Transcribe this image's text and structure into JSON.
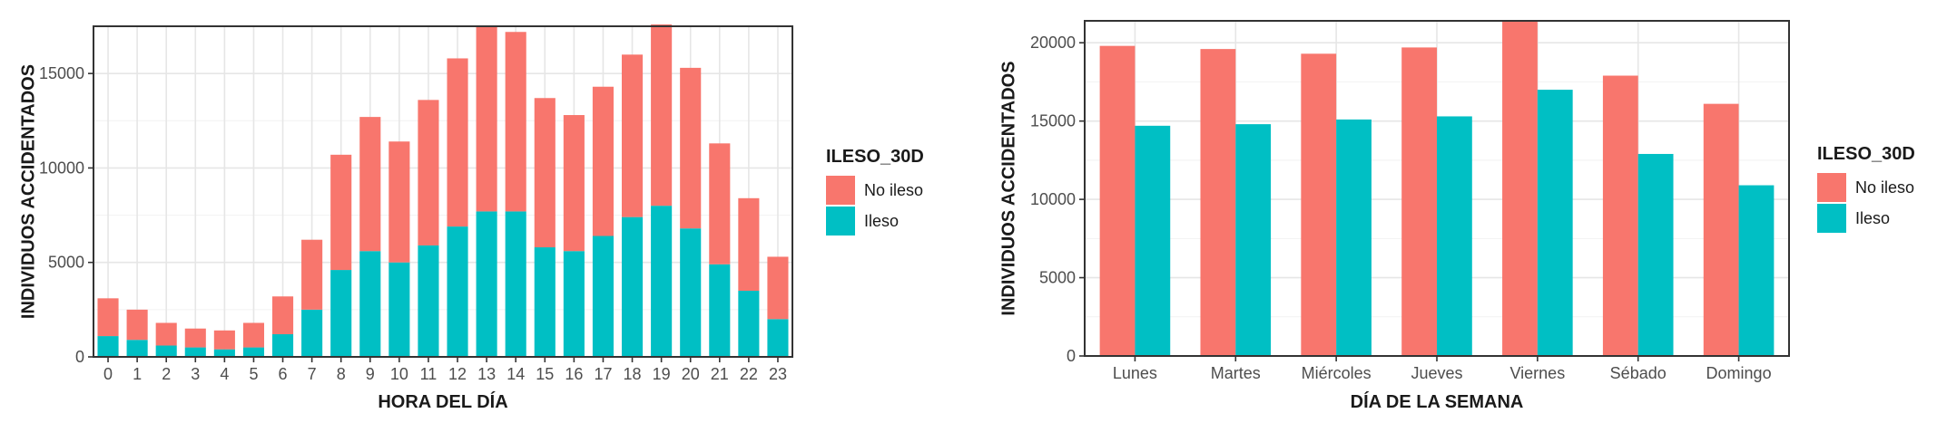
{
  "chart_data": [
    {
      "type": "bar",
      "stacked": true,
      "xlabel": "HORA DEL DÍA",
      "ylabel": "INDIVIDUOS ACCIDENTADOS",
      "categories": [
        "0",
        "1",
        "2",
        "3",
        "4",
        "5",
        "6",
        "7",
        "8",
        "9",
        "10",
        "11",
        "12",
        "13",
        "14",
        "15",
        "16",
        "17",
        "18",
        "19",
        "20",
        "21",
        "22",
        "23"
      ],
      "series": [
        {
          "name": "No ileso",
          "color": "#F8766D",
          "values": [
            2000,
            1600,
            1200,
            1000,
            1000,
            1300,
            2000,
            3700,
            6100,
            7100,
            6400,
            7700,
            8900,
            9800,
            9500,
            7900,
            7200,
            7900,
            8600,
            9600,
            8500,
            6400,
            4900,
            3300
          ]
        },
        {
          "name": "Ileso",
          "color": "#00BFC4",
          "values": [
            1100,
            900,
            600,
            500,
            400,
            500,
            1200,
            2500,
            4600,
            5600,
            5000,
            5900,
            6900,
            7700,
            7700,
            5800,
            5600,
            6400,
            7400,
            8000,
            6800,
            4900,
            3500,
            2000
          ]
        }
      ],
      "ylim": [
        0,
        17500
      ],
      "yticks": [
        0,
        5000,
        10000,
        15000
      ],
      "ytick_labels": [
        "0",
        "5000",
        "10000",
        "15000"
      ],
      "grid": true,
      "legend": {
        "title": "ILESO_30D",
        "position": "right",
        "labels": [
          "No ileso",
          "Ileso"
        ]
      }
    },
    {
      "type": "bar",
      "grouped": true,
      "xlabel": "DÍA DE LA SEMANA",
      "ylabel": "INDIVIDUOS ACCIDENTADOS",
      "categories": [
        "Lunes",
        "Martes",
        "Miércoles",
        "Jueves",
        "Viernes",
        "Sébado",
        "Domingo"
      ],
      "series": [
        {
          "name": "No ileso",
          "color": "#F8766D",
          "values": [
            19800,
            19600,
            19300,
            19700,
            21400,
            17900,
            16100
          ]
        },
        {
          "name": "Ileso",
          "color": "#00BFC4",
          "values": [
            14700,
            14800,
            15100,
            15300,
            17000,
            12900,
            10900
          ]
        }
      ],
      "ylim": [
        0,
        21400
      ],
      "yticks": [
        0,
        5000,
        10000,
        15000,
        20000
      ],
      "ytick_labels": [
        "0",
        "5000",
        "10000",
        "15000",
        "20000"
      ],
      "grid": true,
      "legend": {
        "title": "ILESO_30D",
        "position": "right",
        "labels": [
          "No ileso",
          "Ileso"
        ]
      }
    }
  ]
}
